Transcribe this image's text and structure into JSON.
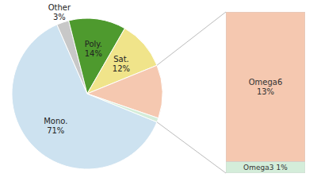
{
  "chart_data": [
    {
      "type": "pie",
      "categories": [
        "Mono.",
        "Other",
        "Poly.",
        "Sat.",
        null,
        null
      ],
      "values": [
        71,
        3,
        14,
        12,
        13,
        1
      ],
      "value_labels": [
        "71%",
        "3%",
        "14%",
        "12%",
        null,
        null
      ],
      "colors": [
        "#cde2f0",
        "#c8c8c8",
        "#4e9a2e",
        "#f0e48a",
        "#f5c8b0",
        "#d4edda"
      ],
      "data_labels": true
    },
    {
      "type": "bar",
      "stacked": true,
      "categories": [
        null
      ],
      "series": [
        {
          "name": "Omega6",
          "color": "#f5c8b0",
          "values": [
            13
          ],
          "value_labels": [
            "13%"
          ]
        },
        {
          "name": "Omega3",
          "color": "#d4edda",
          "values": [
            1
          ],
          "value_labels": [
            "1%"
          ]
        }
      ],
      "ylim": [
        0,
        14
      ],
      "data_labels": true,
      "tick_labels": false
    }
  ]
}
